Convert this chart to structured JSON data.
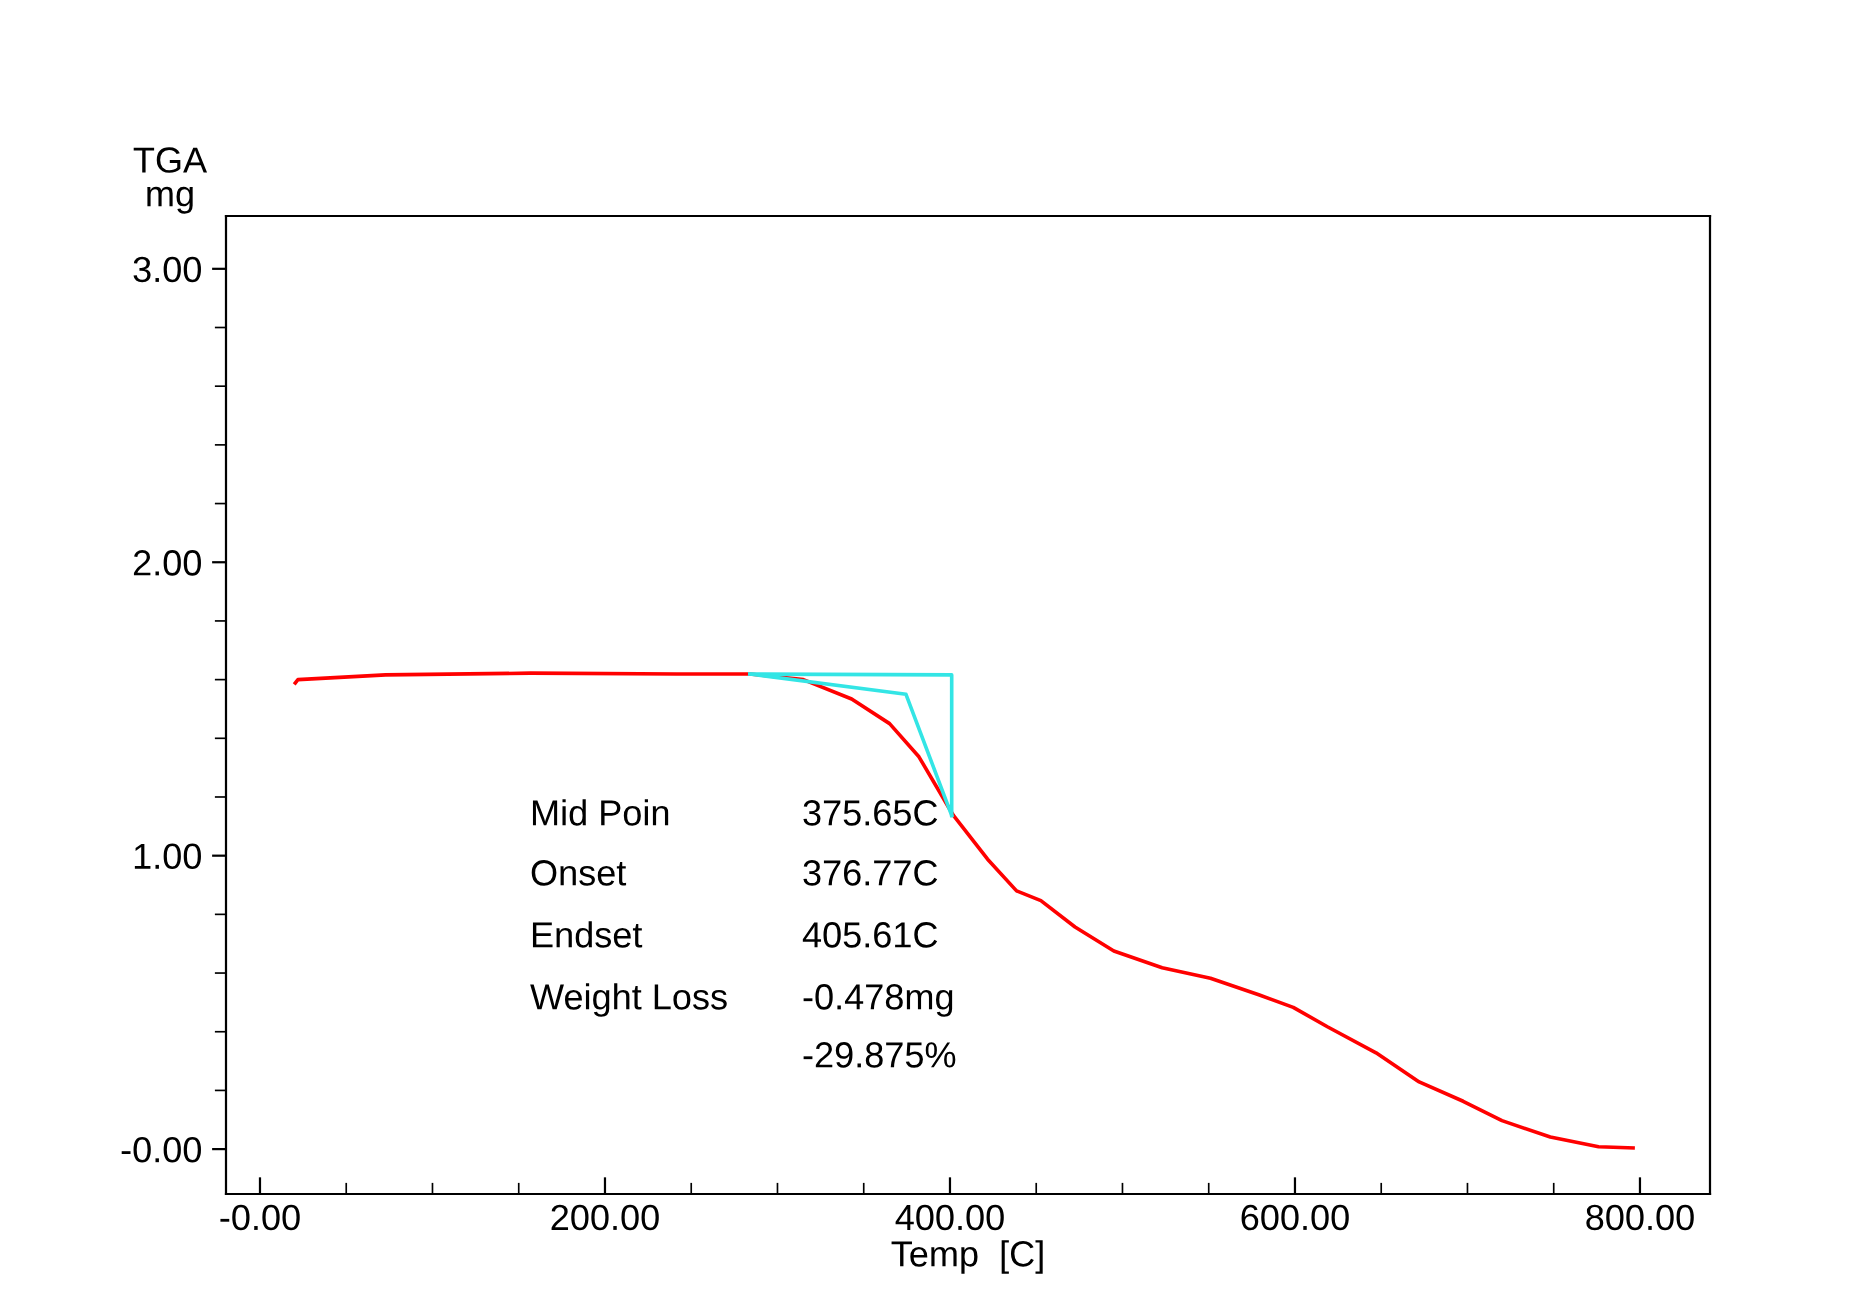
{
  "chart_data": {
    "type": "line",
    "xlabel": "Temp  [C]",
    "ylabel": "TGA\nmg",
    "xlim": [
      -19.7,
      840.6
    ],
    "ylim": [
      -0.153,
      3.18
    ],
    "xticks": [
      {
        "value": 0,
        "label": "-0.00"
      },
      {
        "value": 50,
        "label": null
      },
      {
        "value": 100,
        "label": null
      },
      {
        "value": 150,
        "label": null
      },
      {
        "value": 200,
        "label": "200.00"
      },
      {
        "value": 250,
        "label": null
      },
      {
        "value": 300,
        "label": null
      },
      {
        "value": 350,
        "label": null
      },
      {
        "value": 400,
        "label": "400.00"
      },
      {
        "value": 450,
        "label": null
      },
      {
        "value": 500,
        "label": null
      },
      {
        "value": 550,
        "label": null
      },
      {
        "value": 600,
        "label": "600.00"
      },
      {
        "value": 650,
        "label": null
      },
      {
        "value": 700,
        "label": null
      },
      {
        "value": 750,
        "label": null
      },
      {
        "value": 800,
        "label": "800.00"
      }
    ],
    "yticks": [
      {
        "value": 0,
        "label": "-0.00"
      },
      {
        "value": 0.2,
        "label": null
      },
      {
        "value": 0.4,
        "label": null
      },
      {
        "value": 0.6,
        "label": null
      },
      {
        "value": 0.8,
        "label": null
      },
      {
        "value": 1,
        "label": "1.00"
      },
      {
        "value": 1.2,
        "label": null
      },
      {
        "value": 1.4,
        "label": null
      },
      {
        "value": 1.6,
        "label": null
      },
      {
        "value": 1.8,
        "label": null
      },
      {
        "value": 2,
        "label": "2.00"
      },
      {
        "value": 2.2,
        "label": null
      },
      {
        "value": 2.4,
        "label": null
      },
      {
        "value": 2.6,
        "label": null
      },
      {
        "value": 2.8,
        "label": null
      },
      {
        "value": 3,
        "label": "3.00"
      }
    ],
    "grid": false,
    "legend": false,
    "marker": "none",
    "line_style": "solid",
    "series": [
      {
        "color": "#ff0000",
        "x": [
          20.5,
          22,
          72.8,
          157,
          241.6,
          284,
          315,
          343,
          365,
          382,
          402,
          421.8,
          438.6,
          452.7,
          472.5,
          495,
          523,
          551,
          579,
          599,
          618.8,
          647,
          672,
          697.5,
          720,
          748,
          776,
          796
        ],
        "values": [
          1.589,
          1.6,
          1.616,
          1.622,
          1.619,
          1.619,
          1.6,
          1.534,
          1.45,
          1.337,
          1.137,
          0.988,
          0.88,
          0.847,
          0.757,
          0.675,
          0.618,
          0.582,
          0.526,
          0.483,
          0.417,
          0.328,
          0.229,
          0.163,
          0.097,
          0.041,
          0.008,
          0.004
        ]
      },
      {
        "color": "#33e5e5",
        "x": [
          284,
          401,
          401
        ],
        "values": [
          1.619,
          1.616,
          1.137
        ]
      },
      {
        "color": "#33e5e5",
        "x": [
          284,
          374.5,
          401
        ],
        "values": [
          1.619,
          1.55,
          1.137
        ]
      }
    ],
    "annotations": [
      "Mid Poin",
      "375.65C",
      "Onset",
      "376.77C",
      "Endset",
      "405.61C",
      "Weight Loss",
      "-0.478mg",
      "-29.875%"
    ]
  }
}
